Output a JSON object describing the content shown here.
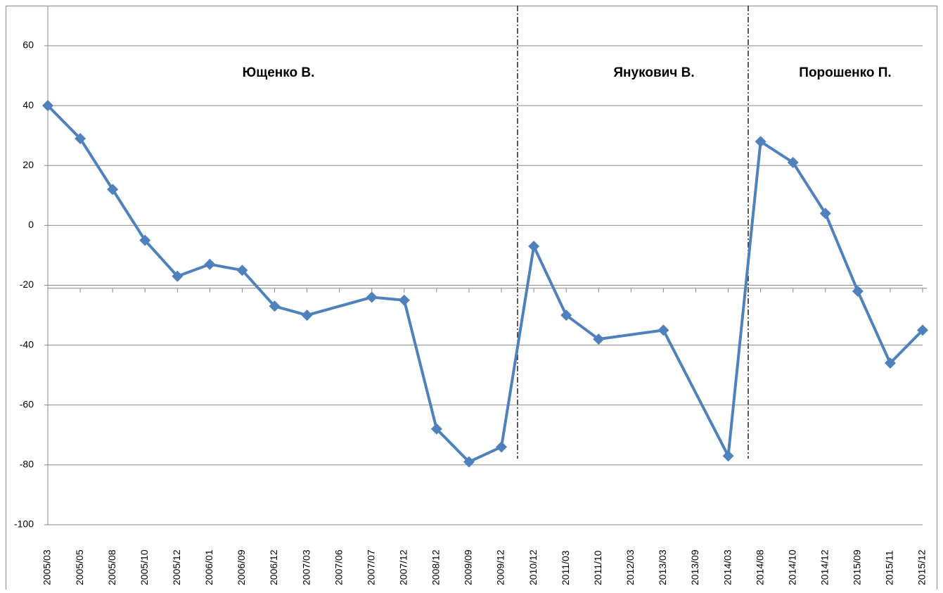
{
  "chart_data": {
    "type": "line",
    "categories": [
      "2005/03",
      "2005/05",
      "2005/08",
      "2005/10",
      "2005/12",
      "2006/01",
      "2006/09",
      "2006/12",
      "2007/03",
      "2007/06",
      "2007/07",
      "2007/12",
      "2008/12",
      "2009/09",
      "2009/12",
      "2010/12",
      "2011/03",
      "2011/10",
      "2012/03",
      "2013/03",
      "2013/09",
      "2014/03",
      "2014/08",
      "2014/10",
      "2014/12",
      "2015/09",
      "2015/11",
      "2015/12"
    ],
    "series": [
      {
        "color": "#4f81bd",
        "values": [
          40,
          29,
          12,
          -5,
          -17,
          -13,
          -15,
          -27,
          -30,
          null,
          -24,
          -25,
          -68,
          -79,
          -74,
          -7,
          -30,
          -38,
          null,
          -35,
          null,
          -77,
          28,
          21,
          4,
          -22,
          -46,
          -35
        ]
      }
    ],
    "connect_gaps": true,
    "ylim": [
      -100,
      60
    ],
    "yticks": [
      -100,
      -80,
      -60,
      -40,
      -20,
      0,
      20,
      40,
      60
    ],
    "grid": true,
    "x_axis_crossing": -21,
    "annotations": [
      "Ющенко В.",
      "Янукович В.",
      "Порошенко П."
    ]
  }
}
